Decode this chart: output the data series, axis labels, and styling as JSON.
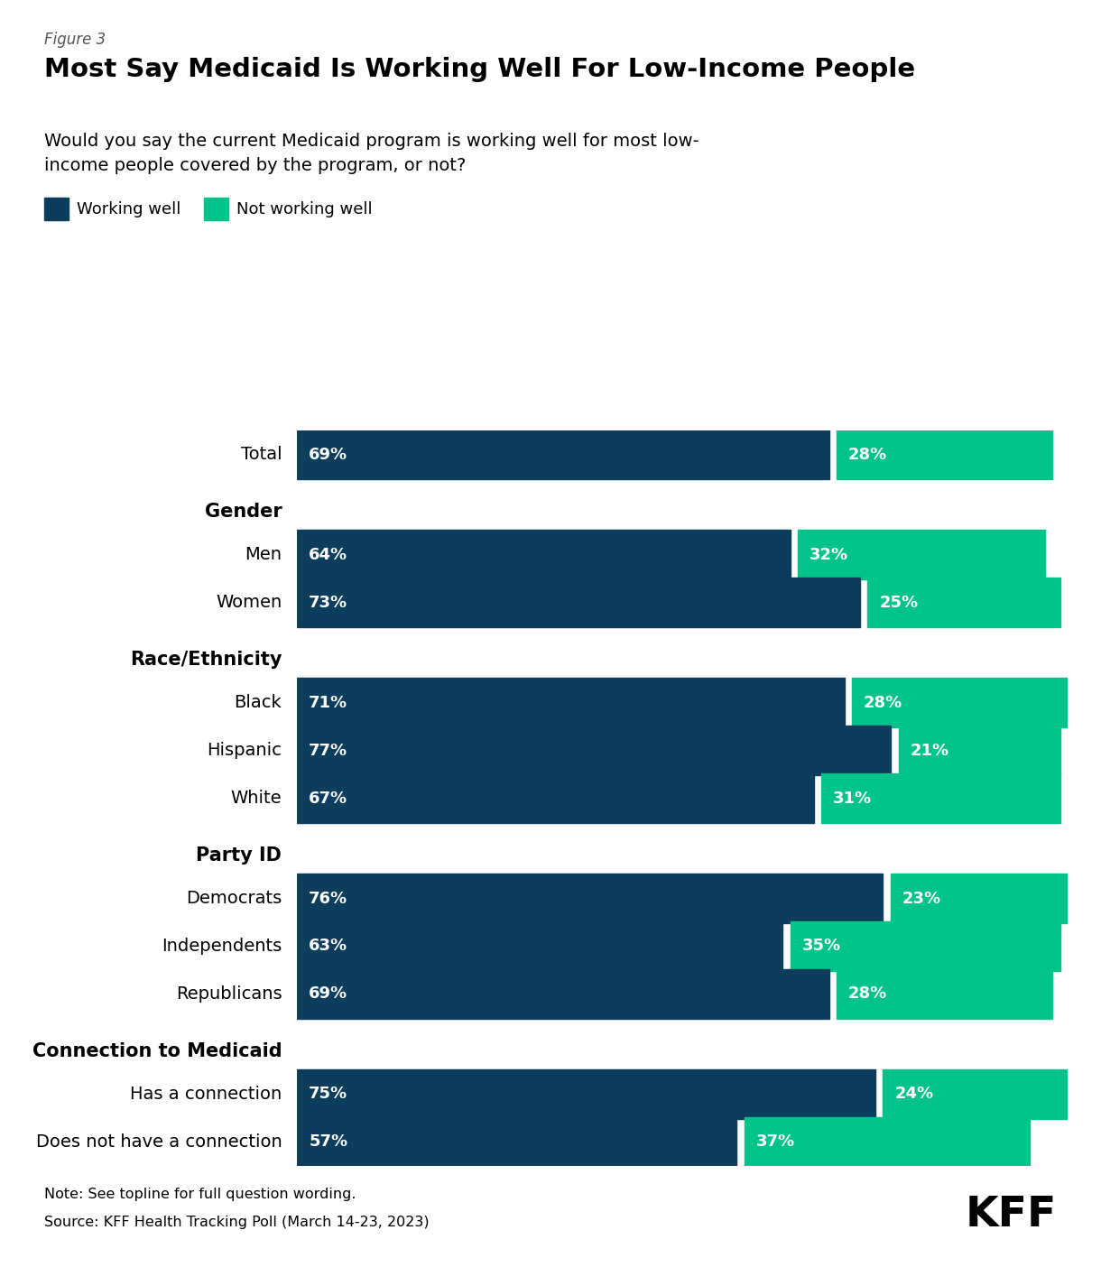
{
  "figure_label": "Figure 3",
  "title": "Most Say Medicaid Is Working Well For Low-Income People",
  "subtitle": "Would you say the current Medicaid program is working well for most low-\nincome people covered by the program, or not?",
  "legend_labels": [
    "Working well",
    "Not working well"
  ],
  "color_working": "#0d3d5c",
  "color_not_working": "#00c389",
  "rows": [
    {
      "type": "data",
      "label": "Total",
      "working": 69,
      "not_working": 28
    },
    {
      "type": "header",
      "label": "Gender"
    },
    {
      "type": "data",
      "label": "Men",
      "working": 64,
      "not_working": 32
    },
    {
      "type": "data",
      "label": "Women",
      "working": 73,
      "not_working": 25
    },
    {
      "type": "header",
      "label": "Race/Ethnicity"
    },
    {
      "type": "data",
      "label": "Black",
      "working": 71,
      "not_working": 28
    },
    {
      "type": "data",
      "label": "Hispanic",
      "working": 77,
      "not_working": 21
    },
    {
      "type": "data",
      "label": "White",
      "working": 67,
      "not_working": 31
    },
    {
      "type": "header",
      "label": "Party ID"
    },
    {
      "type": "data",
      "label": "Democrats",
      "working": 76,
      "not_working": 23
    },
    {
      "type": "data",
      "label": "Independents",
      "working": 63,
      "not_working": 35
    },
    {
      "type": "data",
      "label": "Republicans",
      "working": 69,
      "not_working": 28
    },
    {
      "type": "header",
      "label": "Connection to Medicaid"
    },
    {
      "type": "data",
      "label": "Has a connection",
      "working": 75,
      "not_working": 24
    },
    {
      "type": "data",
      "label": "Does not have a connection",
      "working": 57,
      "not_working": 37
    }
  ],
  "note": "Note: See topline for full question wording.",
  "source": "Source: KFF Health Tracking Poll (March 14-23, 2023)",
  "bar_gap": 1,
  "bar_label_fontsize": 13,
  "category_fontsize": 14,
  "header_fontsize": 15
}
